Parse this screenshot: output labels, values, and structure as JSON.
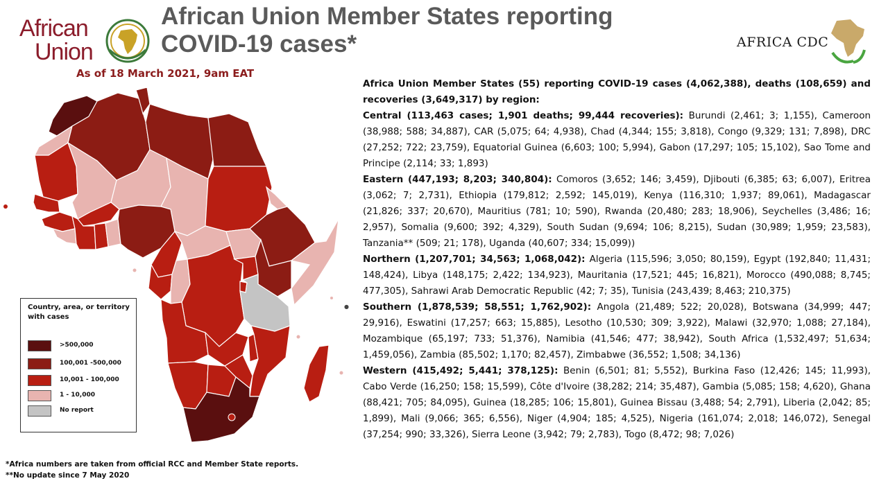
{
  "logos": {
    "au_line1": "African",
    "au_line2": "Union",
    "cdc_text": "AFRICA CDC",
    "au_color": "#8b1c2b"
  },
  "header": {
    "title_line1": "African Union Member States reporting",
    "title_line2": "COVID-19 cases*",
    "as_of": "As of 18 March 2021, 9am EAT"
  },
  "legend": {
    "title": "Country, area, or territory with cases",
    "items": [
      {
        "label": ">500,000",
        "color": "#5a0f0f"
      },
      {
        "label": "100,001 -500,000",
        "color": "#8c1c14"
      },
      {
        "label": "10,001 - 100,000",
        "color": "#b81e12"
      },
      {
        "label": "1 - 10,000",
        "color": "#e8b4b0"
      },
      {
        "label": "No report",
        "color": "#c4c4c4"
      }
    ]
  },
  "footnotes": {
    "note1": "*Africa numbers are taken from official RCC and Member State reports.",
    "note2": "**No update since 7 May 2020"
  },
  "summary": {
    "lead": "Africa Union Member States (55) reporting COVID-19 cases (4,062,388), deaths (108,659) and recoveries (3,649,317) by region:",
    "regions": [
      {
        "header": "Central (113,463 cases; 1,901 deaths; 99,444 recoveries):",
        "body": " Burundi (2,461; 3; 1,155), Cameroon (38,988; 588; 34,887), CAR (5,075; 64; 4,938), Chad (4,344; 155; 3,818), Congo (9,329; 131; 7,898), DRC (27,252; 722; 23,759), Equatorial Guinea (6,603; 100; 5,994), Gabon (17,297; 105; 15,102), Sao Tome and Principe (2,114; 33; 1,893)"
      },
      {
        "header": "Eastern (447,193; 8,203; 340,804):",
        "body": " Comoros (3,652; 146; 3,459), Djibouti (6,385; 63; 6,007), Eritrea (3,062; 7; 2,731), Ethiopia (179,812; 2,592; 145,019), Kenya (116,310; 1,937; 89,061), Madagascar (21,826; 337; 20,670), Mauritius (781; 10; 590), Rwanda (20,480; 283; 18,906), Seychelles (3,486; 16; 2,957), Somalia (9,600; 392; 4,329), South Sudan (9,694; 106; 8,215), Sudan (30,989; 1,959; 23,583), Tanzania** (509; 21; 178), Uganda (40,607; 334; 15,099))"
      },
      {
        "header": "Northern (1,207,701; 34,563; 1,068,042):",
        "body": " Algeria (115,596; 3,050; 80,159), Egypt (192,840; 11,431; 148,424), Libya (148,175; 2,422; 134,923), Mauritania (17,521; 445; 16,821), Morocco (490,088; 8,745; 477,305), Sahrawi Arab Democratic Republic (42; 7; 35), Tunisia (243,439; 8,463; 210,375)"
      },
      {
        "header": "Southern (1,878,539; 58,551; 1,762,902):",
        "body": " Angola (21,489; 522; 20,028), Botswana (34,999; 447; 29,916), Eswatini (17,257; 663; 15,885), Lesotho (10,530; 309; 3,922), Malawi (32,970; 1,088; 27,184), Mozambique (65,197; 733; 51,376), Namibia (41,546; 477; 38,942), South Africa (1,532,497; 51,634; 1,459,056), Zambia (85,502; 1,170; 82,457), Zimbabwe (36,552; 1,508; 34,136)"
      },
      {
        "header": "Western (415,492; 5,441; 378,125):",
        "body": " Benin (6,501; 81; 5,552), Burkina Faso (12,426; 145; 11,993), Cabo Verde (16,250; 158; 15,599), Côte d'Ivoire (38,282; 214; 35,487), Gambia (5,085; 158; 4,620), Ghana (88,421; 705; 84,095), Guinea (18,285; 106; 15,801), Guinea Bissau (3,488; 54; 2,791), Liberia (2,042; 85; 1,899), Mali (9,066; 365; 6,556), Niger (4,904; 185; 4,525), Nigeria (161,074; 2,018; 146,072), Senegal (37,254; 990; 33,326), Sierra Leone (3,942; 79; 2,783), Togo (8,472; 98; 7,026)"
      }
    ]
  }
}
